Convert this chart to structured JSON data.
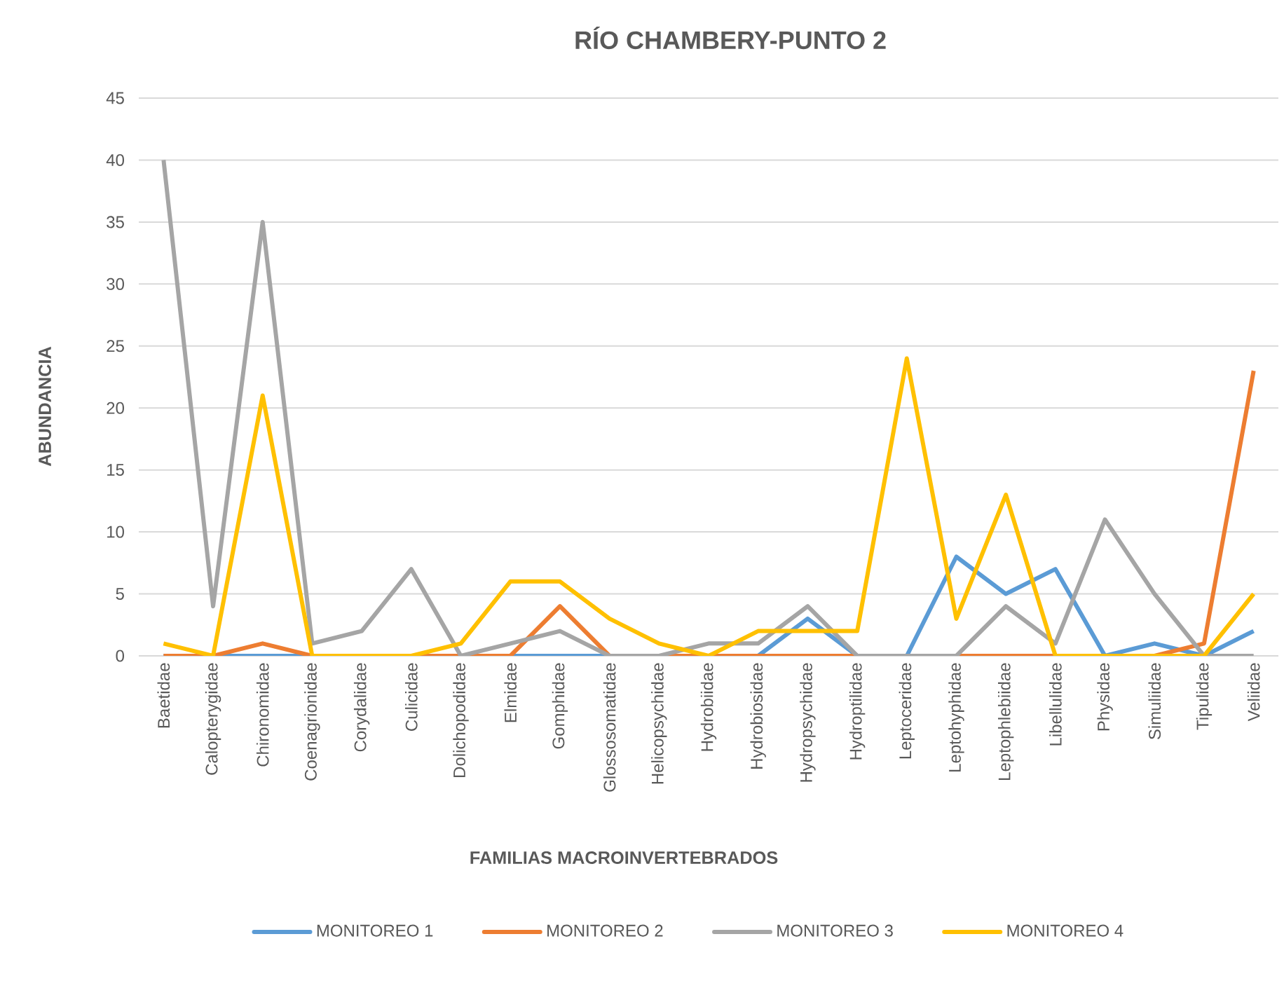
{
  "chart_data": {
    "type": "line",
    "title": "RÍO CHAMBERY-PUNTO 2",
    "xlabel": "FAMILIAS MACROINVERTEBRADOS",
    "ylabel": "ABUNDANCIA",
    "categories": [
      "Baetidae",
      "Calopterygidae",
      "Chironomidae",
      "Coenagrionidae",
      "Corydalidae",
      "Culicidae",
      "Dolichopodidae",
      "Elmidae",
      "Gomphidae",
      "Glossosomatidae",
      "Helicopsychidae",
      "Hydrobiidae",
      "Hydrobiosidae",
      "Hydropsychidae",
      "Hydroptilidae",
      "Leptoceridae",
      "Leptohyphidae",
      "Leptophlebiidae",
      "Libellulidae",
      "Physidae",
      "Simuliidae",
      "Tipulidae",
      "Veliidae"
    ],
    "series": [
      {
        "name": "MONITOREO 1",
        "color": "#5b9bd5",
        "values": [
          0,
          0,
          0,
          0,
          0,
          0,
          0,
          0,
          0,
          0,
          0,
          0,
          0,
          3,
          0,
          0,
          8,
          5,
          7,
          0,
          1,
          0,
          2
        ]
      },
      {
        "name": "MONITOREO 2",
        "color": "#ed7d31",
        "values": [
          0,
          0,
          1,
          0,
          0,
          0,
          0,
          0,
          4,
          0,
          0,
          0,
          0,
          0,
          0,
          0,
          0,
          0,
          0,
          0,
          0,
          1,
          23
        ]
      },
      {
        "name": "MONITOREO 3",
        "color": "#a5a5a5",
        "values": [
          40,
          4,
          35,
          1,
          2,
          7,
          0,
          1,
          2,
          0,
          0,
          1,
          1,
          4,
          0,
          0,
          0,
          4,
          1,
          11,
          5,
          0,
          0
        ]
      },
      {
        "name": "MONITOREO 4",
        "color": "#ffc000",
        "values": [
          1,
          0,
          21,
          0,
          0,
          0,
          1,
          6,
          6,
          3,
          1,
          0,
          2,
          2,
          2,
          24,
          3,
          13,
          0,
          0,
          0,
          0,
          5
        ]
      }
    ],
    "ylim": [
      0,
      45
    ],
    "yticks": [
      0,
      5,
      10,
      15,
      20,
      25,
      30,
      35,
      40,
      45
    ],
    "grid": "y",
    "legend": "bottom",
    "marker": "none",
    "line_style": "solid"
  }
}
